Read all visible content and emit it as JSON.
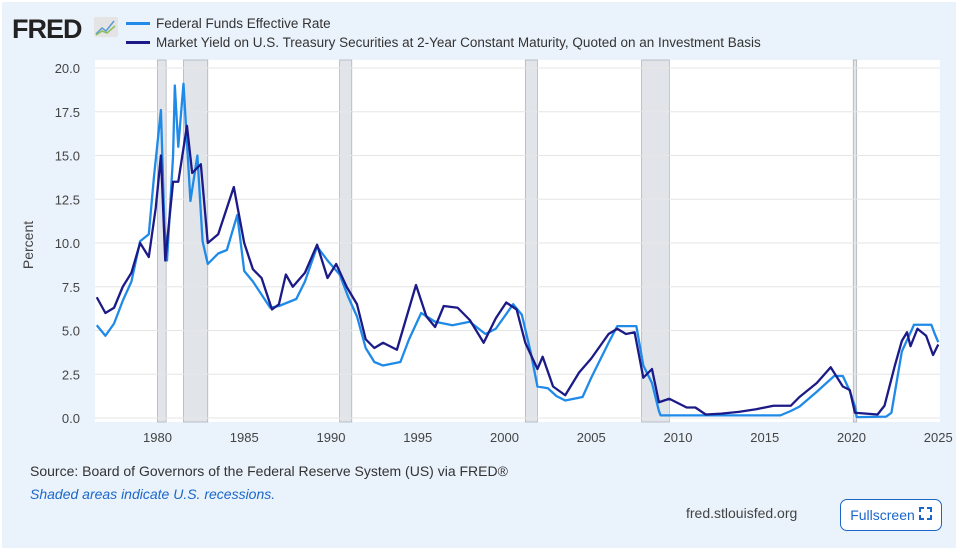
{
  "logo": "FRED",
  "footer": {
    "source": "Source: Board of Governors of the Federal Reserve System (US) via FRED®",
    "note": "Shaded areas indicate U.S. recessions.",
    "site": "fred.stlouisfed.org",
    "fullscreen": "Fullscreen"
  },
  "chart_data": {
    "type": "line",
    "ylabel": "Percent",
    "xlim": [
      1976.4,
      2025.1
    ],
    "ylim": [
      0,
      20
    ],
    "yticks": [
      "0.0",
      "2.5",
      "5.0",
      "7.5",
      "10.0",
      "12.5",
      "15.0",
      "17.5",
      "20.0"
    ],
    "xticks": [
      "1980",
      "1985",
      "1990",
      "1995",
      "2000",
      "2005",
      "2010",
      "2015",
      "2020",
      "2025"
    ],
    "grid": true,
    "legend": "top",
    "recessions": [
      [
        1980.0,
        1980.5
      ],
      [
        1981.5,
        1982.9
      ],
      [
        1990.5,
        1991.2
      ],
      [
        2001.2,
        2001.9
      ],
      [
        2007.9,
        2009.5
      ],
      [
        2020.1,
        2020.3
      ]
    ],
    "series": [
      {
        "name": "Federal Funds Effective Rate",
        "color": "#1f8ae8",
        "points": [
          [
            1976.5,
            5.3
          ],
          [
            1977,
            4.7
          ],
          [
            1977.5,
            5.4
          ],
          [
            1978,
            6.7
          ],
          [
            1978.5,
            7.8
          ],
          [
            1979,
            10.1
          ],
          [
            1979.5,
            10.5
          ],
          [
            1979.8,
            13.8
          ],
          [
            1980.2,
            17.6
          ],
          [
            1980.4,
            11
          ],
          [
            1980.55,
            9.0
          ],
          [
            1980.9,
            15
          ],
          [
            1981.0,
            19
          ],
          [
            1981.2,
            15.5
          ],
          [
            1981.5,
            19.1
          ],
          [
            1981.9,
            12.4
          ],
          [
            1982.3,
            15
          ],
          [
            1982.6,
            10.1
          ],
          [
            1982.9,
            8.8
          ],
          [
            1983.5,
            9.4
          ],
          [
            1984,
            9.6
          ],
          [
            1984.6,
            11.6
          ],
          [
            1985,
            8.4
          ],
          [
            1985.5,
            7.8
          ],
          [
            1986.5,
            6.3
          ],
          [
            1987,
            6.4
          ],
          [
            1987.5,
            6.6
          ],
          [
            1988,
            6.8
          ],
          [
            1988.5,
            7.8
          ],
          [
            1989.2,
            9.8
          ],
          [
            1989.8,
            9
          ],
          [
            1990.5,
            8.2
          ],
          [
            1991,
            6.9
          ],
          [
            1991.5,
            5.8
          ],
          [
            1992,
            4.0
          ],
          [
            1992.5,
            3.2
          ],
          [
            1993,
            3.0
          ],
          [
            1994,
            3.2
          ],
          [
            1994.5,
            4.5
          ],
          [
            1995.2,
            6.0
          ],
          [
            1996,
            5.5
          ],
          [
            1997,
            5.3
          ],
          [
            1998,
            5.5
          ],
          [
            1998.9,
            4.8
          ],
          [
            1999.5,
            5.1
          ],
          [
            2000.5,
            6.5
          ],
          [
            2001,
            5.9
          ],
          [
            2001.5,
            3.8
          ],
          [
            2001.9,
            1.8
          ],
          [
            2002.5,
            1.7
          ],
          [
            2003,
            1.25
          ],
          [
            2003.5,
            1.0
          ],
          [
            2004.5,
            1.2
          ],
          [
            2005,
            2.3
          ],
          [
            2006,
            4.3
          ],
          [
            2006.5,
            5.25
          ],
          [
            2007.6,
            5.25
          ],
          [
            2008,
            3.0
          ],
          [
            2008.5,
            2.0
          ],
          [
            2008.9,
            0.4
          ],
          [
            2009,
            0.15
          ],
          [
            2015.9,
            0.15
          ],
          [
            2016.5,
            0.4
          ],
          [
            2017,
            0.65
          ],
          [
            2018,
            1.5
          ],
          [
            2019,
            2.4
          ],
          [
            2019.5,
            2.4
          ],
          [
            2019.9,
            1.55
          ],
          [
            2020.2,
            0.65
          ],
          [
            2020.3,
            0.05
          ],
          [
            2022,
            0.08
          ],
          [
            2022.3,
            0.3
          ],
          [
            2022.9,
            3.8
          ],
          [
            2023.5,
            5.1
          ],
          [
            2023.6,
            5.33
          ],
          [
            2024.6,
            5.33
          ],
          [
            2024.8,
            4.8
          ],
          [
            2025,
            4.33
          ]
        ]
      },
      {
        "name": "Market Yield on U.S. Treasury Securities at 2-Year Constant Maturity, Quoted on an Investment Basis",
        "color": "#1c1a87",
        "points": [
          [
            1976.5,
            6.9
          ],
          [
            1977,
            6.0
          ],
          [
            1977.5,
            6.3
          ],
          [
            1978,
            7.5
          ],
          [
            1978.5,
            8.3
          ],
          [
            1979,
            10.0
          ],
          [
            1979.5,
            9.2
          ],
          [
            1979.9,
            12
          ],
          [
            1980.2,
            15.0
          ],
          [
            1980.45,
            9.0
          ],
          [
            1980.9,
            13.5
          ],
          [
            1981.2,
            13.5
          ],
          [
            1981.7,
            16.7
          ],
          [
            1982,
            14.0
          ],
          [
            1982.5,
            14.5
          ],
          [
            1982.9,
            10.0
          ],
          [
            1983.5,
            10.5
          ],
          [
            1984.4,
            13.2
          ],
          [
            1985,
            10.0
          ],
          [
            1985.5,
            8.5
          ],
          [
            1986,
            8.0
          ],
          [
            1986.6,
            6.2
          ],
          [
            1987,
            6.5
          ],
          [
            1987.4,
            8.2
          ],
          [
            1987.8,
            7.5
          ],
          [
            1988.5,
            8.3
          ],
          [
            1989.2,
            9.9
          ],
          [
            1989.8,
            8.0
          ],
          [
            1990.3,
            8.8
          ],
          [
            1990.9,
            7.5
          ],
          [
            1991.5,
            6.5
          ],
          [
            1992,
            4.5
          ],
          [
            1992.5,
            4.0
          ],
          [
            1993,
            4.3
          ],
          [
            1993.8,
            3.9
          ],
          [
            1994.9,
            7.6
          ],
          [
            1995.5,
            5.8
          ],
          [
            1996,
            5.2
          ],
          [
            1996.5,
            6.4
          ],
          [
            1997.3,
            6.3
          ],
          [
            1998,
            5.6
          ],
          [
            1998.8,
            4.3
          ],
          [
            1999.5,
            5.7
          ],
          [
            2000.1,
            6.6
          ],
          [
            2000.7,
            6.2
          ],
          [
            2001.2,
            4.3
          ],
          [
            2001.9,
            2.8
          ],
          [
            2002.2,
            3.5
          ],
          [
            2002.8,
            1.8
          ],
          [
            2003.5,
            1.3
          ],
          [
            2004.3,
            2.6
          ],
          [
            2005,
            3.4
          ],
          [
            2006,
            4.8
          ],
          [
            2006.5,
            5.1
          ],
          [
            2007,
            4.8
          ],
          [
            2007.5,
            4.9
          ],
          [
            2008,
            2.3
          ],
          [
            2008.5,
            2.8
          ],
          [
            2008.9,
            0.9
          ],
          [
            2009.5,
            1.1
          ],
          [
            2010.5,
            0.6
          ],
          [
            2011,
            0.6
          ],
          [
            2011.6,
            0.2
          ],
          [
            2012.5,
            0.25
          ],
          [
            2013.5,
            0.35
          ],
          [
            2014.5,
            0.5
          ],
          [
            2015.5,
            0.7
          ],
          [
            2016.5,
            0.7
          ],
          [
            2017,
            1.2
          ],
          [
            2018,
            2.0
          ],
          [
            2018.8,
            2.9
          ],
          [
            2019.5,
            1.8
          ],
          [
            2019.9,
            1.6
          ],
          [
            2020.2,
            0.3
          ],
          [
            2021.5,
            0.2
          ],
          [
            2021.9,
            0.7
          ],
          [
            2022.5,
            3.0
          ],
          [
            2022.9,
            4.4
          ],
          [
            2023.2,
            4.9
          ],
          [
            2023.4,
            4.1
          ],
          [
            2023.8,
            5.1
          ],
          [
            2024.3,
            4.7
          ],
          [
            2024.7,
            3.6
          ],
          [
            2025,
            4.2
          ]
        ]
      }
    ]
  }
}
